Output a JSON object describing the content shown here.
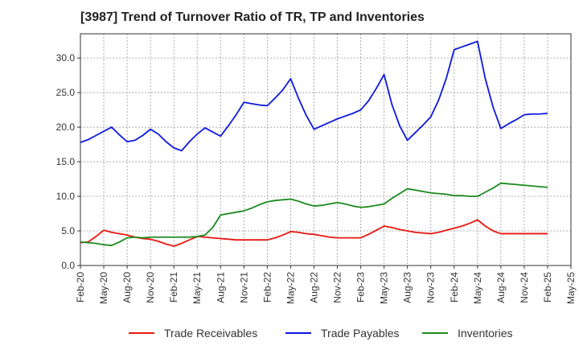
{
  "chart_data": {
    "type": "line",
    "title": "[3987]  Trend of Turnover Ratio of TR, TP and Inventories",
    "xlabel": "",
    "ylabel": "",
    "ylim": [
      0,
      33.5
    ],
    "yticks": [
      0.0,
      5.0,
      10.0,
      15.0,
      20.0,
      25.0,
      30.0
    ],
    "ytick_labels": [
      "0.0",
      "5.0",
      "10.0",
      "15.0",
      "20.0",
      "25.0",
      "30.0"
    ],
    "x_tick_labels": [
      "Feb-20",
      "May-20",
      "Aug-20",
      "Nov-20",
      "Feb-21",
      "May-21",
      "Aug-21",
      "Nov-21",
      "Feb-22",
      "May-22",
      "Aug-22",
      "Nov-22",
      "Feb-23",
      "May-23",
      "Aug-23",
      "Nov-23",
      "Feb-24",
      "May-24",
      "Aug-24",
      "Nov-24",
      "Feb-25",
      "May-25"
    ],
    "x": [
      "Feb-20",
      "Mar-20",
      "Apr-20",
      "May-20",
      "Jun-20",
      "Jul-20",
      "Aug-20",
      "Sep-20",
      "Oct-20",
      "Nov-20",
      "Dec-20",
      "Jan-21",
      "Feb-21",
      "Mar-21",
      "Apr-21",
      "May-21",
      "Jun-21",
      "Jul-21",
      "Aug-21",
      "Sep-21",
      "Oct-21",
      "Nov-21",
      "Dec-21",
      "Jan-22",
      "Feb-22",
      "Mar-22",
      "Apr-22",
      "May-22",
      "Jun-22",
      "Jul-22",
      "Aug-22",
      "Sep-22",
      "Oct-22",
      "Nov-22",
      "Dec-22",
      "Jan-23",
      "Feb-23",
      "Mar-23",
      "Apr-23",
      "May-23",
      "Jun-23",
      "Jul-23",
      "Aug-23",
      "Sep-23",
      "Oct-23",
      "Nov-23",
      "Dec-23",
      "Jan-24",
      "Feb-24",
      "Mar-24",
      "Apr-24",
      "May-24",
      "Jun-24",
      "Jul-24",
      "Aug-24",
      "Sep-24",
      "Oct-24",
      "Nov-24",
      "Dec-24",
      "Jan-25",
      "Feb-25"
    ],
    "grid": true,
    "legend_position": "bottom",
    "series": [
      {
        "name": "Trade Receivables",
        "color": "#e8170f",
        "values": [
          3.3,
          3.4,
          4.2,
          5.1,
          4.8,
          4.6,
          4.4,
          4.1,
          3.9,
          3.8,
          3.5,
          3.1,
          2.8,
          3.2,
          3.7,
          4.2,
          4.1,
          4.0,
          3.9,
          3.8,
          3.7,
          3.7,
          3.7,
          3.7,
          3.7,
          4.0,
          4.4,
          4.9,
          4.8,
          4.6,
          4.5,
          4.3,
          4.1,
          4.0,
          4.0,
          4.0,
          4.0,
          4.5,
          5.1,
          5.7,
          5.5,
          5.2,
          5.0,
          4.8,
          4.7,
          4.6,
          4.8,
          5.1,
          5.4,
          5.7,
          6.1,
          6.6,
          5.7,
          5.0,
          4.6,
          4.6,
          4.6,
          4.6,
          4.6,
          4.6,
          4.6
        ]
      },
      {
        "name": "Trade Payables",
        "color": "#0d18e0",
        "values": [
          17.8,
          18.2,
          18.8,
          19.4,
          20.0,
          18.9,
          17.9,
          18.1,
          18.8,
          19.7,
          19.0,
          17.9,
          17.0,
          16.6,
          17.9,
          19.0,
          19.9,
          19.3,
          18.7,
          20.2,
          21.8,
          23.6,
          23.4,
          23.2,
          23.1,
          24.2,
          25.4,
          27.0,
          24.2,
          21.7,
          19.7,
          20.2,
          20.7,
          21.2,
          21.6,
          22.0,
          22.5,
          23.8,
          25.6,
          27.6,
          23.3,
          20.2,
          18.1,
          19.2,
          20.3,
          21.5,
          23.9,
          27.1,
          31.2,
          31.6,
          32.0,
          32.4,
          27.0,
          22.9,
          19.8,
          20.5,
          21.1,
          21.8,
          21.9,
          21.9,
          22.0
        ]
      },
      {
        "name": "Inventories",
        "color": "#1d8a1d",
        "values": [
          3.4,
          3.3,
          3.2,
          3.0,
          2.9,
          3.4,
          4.0,
          4.1,
          4.0,
          4.1,
          4.1,
          4.1,
          4.1,
          4.1,
          4.1,
          4.2,
          4.4,
          5.5,
          7.3,
          7.5,
          7.7,
          7.9,
          8.3,
          8.8,
          9.2,
          9.4,
          9.5,
          9.6,
          9.3,
          8.9,
          8.6,
          8.7,
          8.9,
          9.1,
          8.9,
          8.6,
          8.4,
          8.5,
          8.7,
          8.9,
          9.7,
          10.4,
          11.1,
          10.9,
          10.7,
          10.5,
          10.4,
          10.3,
          10.1,
          10.1,
          10.0,
          10.0,
          10.6,
          11.2,
          11.9,
          11.8,
          11.7,
          11.6,
          11.5,
          11.4,
          11.3
        ]
      }
    ]
  }
}
